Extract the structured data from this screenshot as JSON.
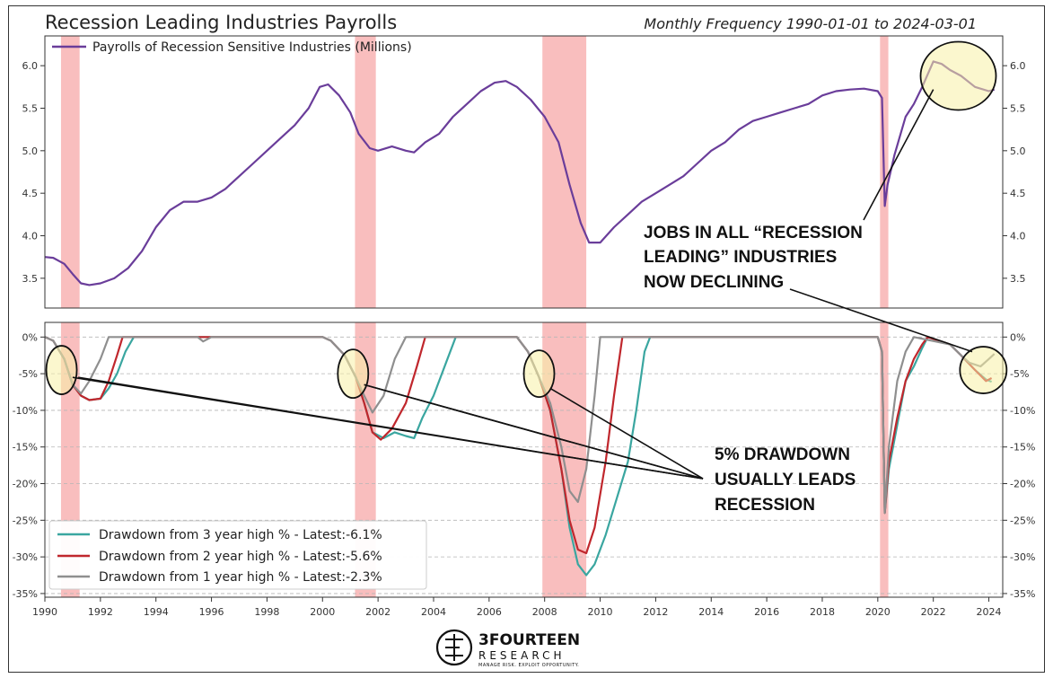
{
  "header": {
    "title": "Recession Leading Industries Payrolls",
    "subtitle": "Monthly Frequency 1990-01-01 to 2024-03-01"
  },
  "brand": {
    "name": "3FOURTEEN",
    "sub": "RESEARCH",
    "tagline": "MANAGE RISK. EXPLOIT OPPORTUNITY."
  },
  "annotations": {
    "top": [
      "JOBS IN ALL “RECESSION",
      "LEADING” INDUSTRIES",
      "NOW DECLINING"
    ],
    "bottom": [
      "5% DRAWDOWN",
      "USUALLY LEADS",
      "RECESSION"
    ]
  },
  "colors": {
    "payrolls": "#6a3d9a",
    "dd3": "#3aa6a0",
    "dd2": "#c0272d",
    "dd1": "#8f8f8f",
    "recession": "#f7a8a8",
    "highlight": "#f7f0a6"
  },
  "chart_data": [
    {
      "type": "line",
      "title": "Recession Leading Industries Payrolls",
      "legend": [
        "Payrolls of Recession Sensitive Industries (Millions)"
      ],
      "legend_position": "top-left",
      "xlim": [
        1990,
        2024.5
      ],
      "ylim": [
        3.15,
        6.35
      ],
      "yticks": [
        3.5,
        4.0,
        4.5,
        5.0,
        5.5,
        6.0
      ],
      "ytick_labels": [
        "3.5",
        "4.0",
        "4.5",
        "5.0",
        "5.5",
        "6.0"
      ],
      "series": [
        {
          "name": "Payrolls of Recession Sensitive Industries (Millions)",
          "points": [
            [
              1990.0,
              3.75
            ],
            [
              1990.3,
              3.74
            ],
            [
              1990.7,
              3.67
            ],
            [
              1991.0,
              3.55
            ],
            [
              1991.3,
              3.44
            ],
            [
              1991.6,
              3.42
            ],
            [
              1992.0,
              3.44
            ],
            [
              1992.5,
              3.5
            ],
            [
              1993.0,
              3.62
            ],
            [
              1993.5,
              3.82
            ],
            [
              1994.0,
              4.1
            ],
            [
              1994.5,
              4.3
            ],
            [
              1995.0,
              4.4
            ],
            [
              1995.5,
              4.4
            ],
            [
              1996.0,
              4.45
            ],
            [
              1996.5,
              4.55
            ],
            [
              1997.0,
              4.7
            ],
            [
              1997.5,
              4.85
            ],
            [
              1998.0,
              5.0
            ],
            [
              1998.5,
              5.15
            ],
            [
              1999.0,
              5.3
            ],
            [
              1999.5,
              5.5
            ],
            [
              1999.9,
              5.75
            ],
            [
              2000.2,
              5.78
            ],
            [
              2000.6,
              5.65
            ],
            [
              2001.0,
              5.45
            ],
            [
              2001.3,
              5.2
            ],
            [
              2001.7,
              5.03
            ],
            [
              2002.0,
              5.0
            ],
            [
              2002.5,
              5.05
            ],
            [
              2003.0,
              5.0
            ],
            [
              2003.3,
              4.98
            ],
            [
              2003.7,
              5.1
            ],
            [
              2004.2,
              5.2
            ],
            [
              2004.7,
              5.4
            ],
            [
              2005.2,
              5.55
            ],
            [
              2005.7,
              5.7
            ],
            [
              2006.2,
              5.8
            ],
            [
              2006.6,
              5.82
            ],
            [
              2007.0,
              5.75
            ],
            [
              2007.5,
              5.6
            ],
            [
              2008.0,
              5.4
            ],
            [
              2008.5,
              5.1
            ],
            [
              2008.9,
              4.6
            ],
            [
              2009.3,
              4.15
            ],
            [
              2009.6,
              3.92
            ],
            [
              2010.0,
              3.92
            ],
            [
              2010.5,
              4.1
            ],
            [
              2011.0,
              4.25
            ],
            [
              2011.5,
              4.4
            ],
            [
              2012.0,
              4.5
            ],
            [
              2012.5,
              4.6
            ],
            [
              2013.0,
              4.7
            ],
            [
              2013.5,
              4.85
            ],
            [
              2014.0,
              5.0
            ],
            [
              2014.5,
              5.1
            ],
            [
              2015.0,
              5.25
            ],
            [
              2015.5,
              5.35
            ],
            [
              2016.0,
              5.4
            ],
            [
              2016.5,
              5.45
            ],
            [
              2017.0,
              5.5
            ],
            [
              2017.5,
              5.55
            ],
            [
              2018.0,
              5.65
            ],
            [
              2018.5,
              5.7
            ],
            [
              2019.0,
              5.72
            ],
            [
              2019.5,
              5.73
            ],
            [
              2020.0,
              5.7
            ],
            [
              2020.15,
              5.62
            ],
            [
              2020.25,
              4.35
            ],
            [
              2020.35,
              4.6
            ],
            [
              2020.6,
              4.95
            ],
            [
              2021.0,
              5.4
            ],
            [
              2021.3,
              5.55
            ],
            [
              2021.6,
              5.75
            ],
            [
              2022.0,
              6.05
            ],
            [
              2022.3,
              6.02
            ],
            [
              2022.6,
              5.95
            ],
            [
              2023.0,
              5.88
            ],
            [
              2023.5,
              5.75
            ],
            [
              2024.0,
              5.7
            ],
            [
              2024.2,
              5.72
            ]
          ]
        }
      ],
      "recessions": [
        [
          1990.58,
          1991.25
        ],
        [
          2001.17,
          2001.92
        ],
        [
          2007.92,
          2009.5
        ],
        [
          2020.08,
          2020.38
        ]
      ]
    },
    {
      "type": "line",
      "legend_position": "bottom-left",
      "xlim": [
        1990,
        2024.5
      ],
      "ylim": [
        -35.5,
        2
      ],
      "xticks": [
        1990,
        1992,
        1994,
        1996,
        1998,
        2000,
        2002,
        2004,
        2006,
        2008,
        2010,
        2012,
        2014,
        2016,
        2018,
        2020,
        2022,
        2024
      ],
      "xtick_labels": [
        "1990",
        "1992",
        "1994",
        "1996",
        "1998",
        "2000",
        "2002",
        "2004",
        "2006",
        "2008",
        "2010",
        "2012",
        "2014",
        "2016",
        "2018",
        "2020",
        "2022",
        "2024"
      ],
      "yticks": [
        0,
        -5,
        -10,
        -15,
        -20,
        -25,
        -30,
        -35
      ],
      "ytick_labels": [
        "0%",
        "-5%",
        "-10%",
        "-15%",
        "-20%",
        "-25%",
        "-30%",
        "-35%"
      ],
      "grid": true,
      "series": [
        {
          "name": "Drawdown from 3 year high % - Latest:-6.1%",
          "color_key": "dd3",
          "points": [
            [
              1990.0,
              0
            ],
            [
              1990.3,
              -0.5
            ],
            [
              1990.7,
              -3
            ],
            [
              1991.0,
              -6.5
            ],
            [
              1991.3,
              -8
            ],
            [
              1991.6,
              -8.6
            ],
            [
              1992.0,
              -8.4
            ],
            [
              1992.3,
              -7
            ],
            [
              1992.6,
              -5
            ],
            [
              1992.9,
              -2
            ],
            [
              1993.2,
              0
            ],
            [
              2000.0,
              0
            ],
            [
              2000.3,
              -0.5
            ],
            [
              2000.8,
              -2.5
            ],
            [
              2001.2,
              -5.5
            ],
            [
              2001.5,
              -9
            ],
            [
              2001.8,
              -13
            ],
            [
              2002.2,
              -13.8
            ],
            [
              2002.6,
              -13
            ],
            [
              2003.0,
              -13.5
            ],
            [
              2003.3,
              -13.8
            ],
            [
              2003.6,
              -11
            ],
            [
              2004.0,
              -8
            ],
            [
              2004.5,
              -3
            ],
            [
              2004.8,
              0
            ],
            [
              2007.0,
              0
            ],
            [
              2007.4,
              -2
            ],
            [
              2007.8,
              -5.5
            ],
            [
              2008.2,
              -10
            ],
            [
              2008.6,
              -18
            ],
            [
              2008.9,
              -26
            ],
            [
              2009.2,
              -31
            ],
            [
              2009.5,
              -32.5
            ],
            [
              2009.8,
              -31
            ],
            [
              2010.2,
              -27
            ],
            [
              2010.6,
              -22
            ],
            [
              2011.0,
              -17
            ],
            [
              2011.3,
              -10
            ],
            [
              2011.6,
              -2
            ],
            [
              2011.8,
              0
            ],
            [
              2020.0,
              0
            ],
            [
              2020.15,
              -2
            ],
            [
              2020.25,
              -24
            ],
            [
              2020.4,
              -18
            ],
            [
              2020.7,
              -12
            ],
            [
              2021.0,
              -6
            ],
            [
              2021.3,
              -4
            ],
            [
              2021.6,
              -1.5
            ],
            [
              2021.8,
              0
            ],
            [
              2022.6,
              -1
            ],
            [
              2023.0,
              -2.5
            ],
            [
              2023.5,
              -4.5
            ],
            [
              2023.9,
              -5.8
            ],
            [
              2024.1,
              -6.1
            ]
          ]
        },
        {
          "name": "Drawdown from 2 year high % - Latest:-5.6%",
          "color_key": "dd2",
          "points": [
            [
              1990.0,
              0
            ],
            [
              1990.3,
              -0.5
            ],
            [
              1990.7,
              -3
            ],
            [
              1991.0,
              -6.5
            ],
            [
              1991.3,
              -8
            ],
            [
              1991.6,
              -8.6
            ],
            [
              1992.0,
              -8.4
            ],
            [
              1992.3,
              -6
            ],
            [
              1992.6,
              -2.5
            ],
            [
              1992.8,
              0
            ],
            [
              2000.0,
              0
            ],
            [
              2000.3,
              -0.5
            ],
            [
              2000.8,
              -2.5
            ],
            [
              2001.2,
              -5.5
            ],
            [
              2001.5,
              -9
            ],
            [
              2001.8,
              -13
            ],
            [
              2002.1,
              -14
            ],
            [
              2002.5,
              -12.5
            ],
            [
              2003.0,
              -9
            ],
            [
              2003.4,
              -4
            ],
            [
              2003.7,
              0
            ],
            [
              2007.0,
              0
            ],
            [
              2007.4,
              -2
            ],
            [
              2007.8,
              -5.5
            ],
            [
              2008.2,
              -10
            ],
            [
              2008.6,
              -18
            ],
            [
              2008.9,
              -25
            ],
            [
              2009.2,
              -29
            ],
            [
              2009.5,
              -29.5
            ],
            [
              2009.8,
              -26
            ],
            [
              2010.2,
              -17
            ],
            [
              2010.5,
              -8
            ],
            [
              2010.8,
              0
            ],
            [
              2020.0,
              0
            ],
            [
              2020.15,
              -2
            ],
            [
              2020.25,
              -24
            ],
            [
              2020.4,
              -17
            ],
            [
              2020.7,
              -11
            ],
            [
              2021.0,
              -6
            ],
            [
              2021.3,
              -3
            ],
            [
              2021.6,
              -1
            ],
            [
              2021.8,
              0
            ],
            [
              2022.6,
              -1
            ],
            [
              2023.0,
              -2.5
            ],
            [
              2023.5,
              -4.5
            ],
            [
              2023.9,
              -6
            ],
            [
              2024.1,
              -5.6
            ]
          ]
        },
        {
          "name": "Drawdown from 1 year high % - Latest:-2.3%",
          "color_key": "dd1",
          "points": [
            [
              1990.0,
              0
            ],
            [
              1990.3,
              -0.5
            ],
            [
              1990.7,
              -3
            ],
            [
              1991.0,
              -6.5
            ],
            [
              1991.3,
              -7.7
            ],
            [
              1991.6,
              -6
            ],
            [
              1992.0,
              -3
            ],
            [
              1992.3,
              0
            ],
            [
              1995.5,
              0
            ],
            [
              1995.7,
              -0.6
            ],
            [
              1996.0,
              0
            ],
            [
              2000.0,
              0
            ],
            [
              2000.3,
              -0.5
            ],
            [
              2000.8,
              -2.5
            ],
            [
              2001.2,
              -5.5
            ],
            [
              2001.5,
              -8
            ],
            [
              2001.8,
              -10.3
            ],
            [
              2002.2,
              -8
            ],
            [
              2002.6,
              -3
            ],
            [
              2003.0,
              0
            ],
            [
              2007.0,
              0
            ],
            [
              2007.4,
              -2
            ],
            [
              2007.8,
              -5.5
            ],
            [
              2008.2,
              -9
            ],
            [
              2008.6,
              -15
            ],
            [
              2008.9,
              -21
            ],
            [
              2009.2,
              -22.5
            ],
            [
              2009.5,
              -18
            ],
            [
              2009.8,
              -8
            ],
            [
              2010.0,
              0
            ],
            [
              2020.0,
              0
            ],
            [
              2020.15,
              -2
            ],
            [
              2020.25,
              -24
            ],
            [
              2020.4,
              -15
            ],
            [
              2020.7,
              -6
            ],
            [
              2021.0,
              -2
            ],
            [
              2021.3,
              0
            ],
            [
              2022.6,
              -1
            ],
            [
              2023.0,
              -2.5
            ],
            [
              2023.3,
              -3.5
            ],
            [
              2023.7,
              -4
            ],
            [
              2024.0,
              -3
            ],
            [
              2024.2,
              -2.3
            ]
          ]
        }
      ],
      "recessions": [
        [
          1990.58,
          1991.25
        ],
        [
          2001.17,
          2001.92
        ],
        [
          2007.92,
          2009.5
        ],
        [
          2020.08,
          2020.38
        ]
      ]
    }
  ]
}
